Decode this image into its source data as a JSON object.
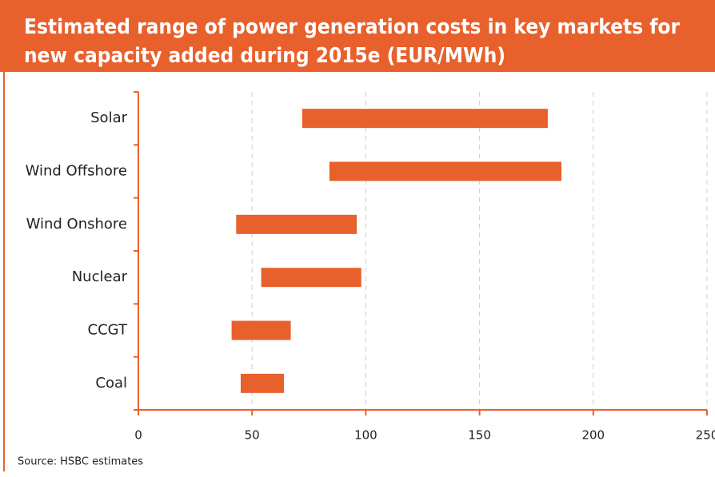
{
  "chart_data": {
    "type": "range_bar",
    "title": [
      "Estimated range of power generation costs in key markets for",
      "new capacity added during 2015e (EUR/MWh)"
    ],
    "categories": [
      "Solar",
      "Wind Offshore",
      "Wind Onshore",
      "Nuclear",
      "CCGT",
      "Coal"
    ],
    "low": [
      72,
      84,
      43,
      54,
      41,
      45
    ],
    "high": [
      180,
      186,
      96,
      98,
      67,
      64
    ],
    "color": "#e8602c",
    "xlim": [
      0,
      250
    ],
    "xticks": [
      0,
      50,
      100,
      150,
      200,
      250
    ],
    "grid": true,
    "source": "Source: HSBC estimates"
  }
}
